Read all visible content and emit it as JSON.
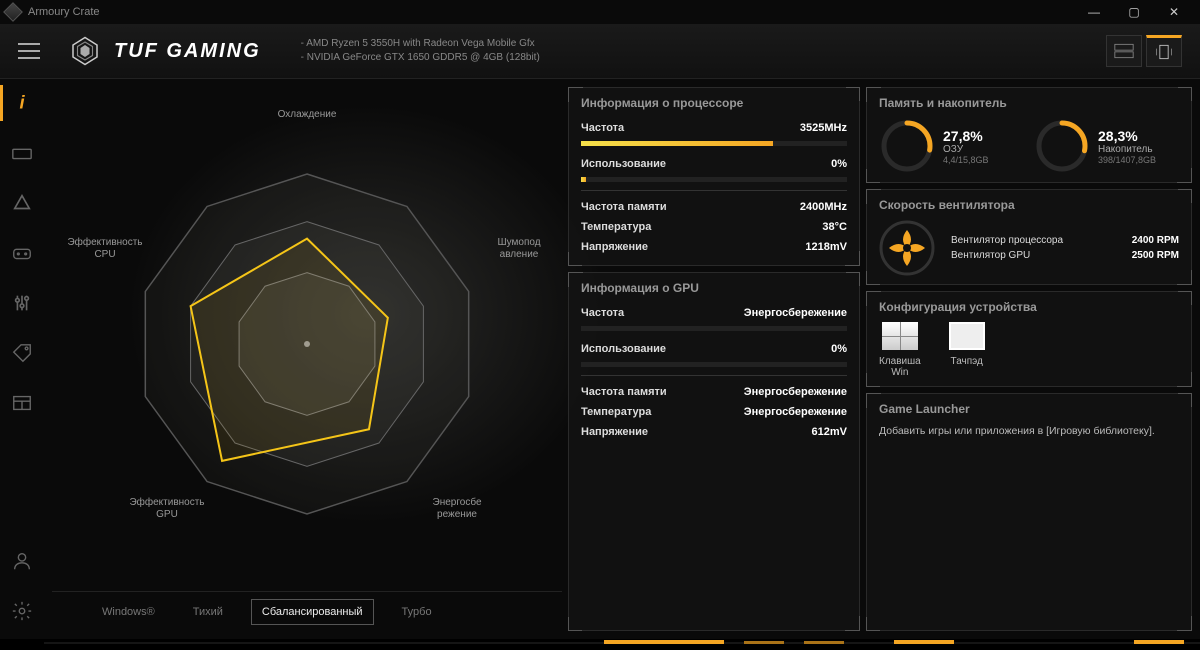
{
  "app": {
    "title": "Armoury Crate"
  },
  "brand": {
    "text": "TUF GAMING"
  },
  "specs": {
    "cpu_line": "AMD Ryzen 5 3550H with Radeon Vega Mobile Gfx",
    "gpu_line": "NVIDIA GeForce GTX 1650 GDDR5 @ 4GB (128bit)"
  },
  "radar": {
    "labels": {
      "top": "Охлаждение",
      "right": "Шумопод\nавление",
      "br": "Энергосбе\nрежение",
      "bl": "Эффективность\nGPU",
      "left": "Эффективность\nCPU"
    },
    "outer_color": "#3a3a38",
    "grid_color": "#4a4a46",
    "shape_color": "#f5c518",
    "points": [
      [
        0.55,
        0.44
      ],
      [
        0.85,
        0.68
      ],
      [
        0.6,
        0.9
      ],
      [
        0.24,
        0.86
      ],
      [
        0.23,
        0.46
      ]
    ]
  },
  "modes": {
    "items": [
      "Windows®",
      "Тихий",
      "Сбалансированный",
      "Турбо"
    ],
    "active_index": 2
  },
  "cpu": {
    "title": "Информация о процессоре",
    "freq_label": "Частота",
    "freq_value": "3525MHz",
    "freq_pct": 72,
    "use_label": "Использование",
    "use_value": "0%",
    "use_pct": 2,
    "mem_label": "Частота памяти",
    "mem_value": "2400MHz",
    "temp_label": "Температура",
    "temp_value": "38°C",
    "volt_label": "Напряжение",
    "volt_value": "1218mV"
  },
  "gpu": {
    "title": "Информация о GPU",
    "freq_label": "Частота",
    "freq_value": "Энергосбережение",
    "freq_pct": 0,
    "use_label": "Использование",
    "use_value": "0%",
    "use_pct": 0,
    "mem_label": "Частота памяти",
    "mem_value": "Энергосбережение",
    "temp_label": "Температура",
    "temp_value": "Энергосбережение",
    "volt_label": "Напряжение",
    "volt_value": "612mV"
  },
  "memory": {
    "title": "Память и накопитель",
    "ram": {
      "pct": "27,8%",
      "pct_num": 27.8,
      "label": "ОЗУ",
      "sub": "4,4/15,8GB",
      "color": "#f5a623"
    },
    "storage": {
      "pct": "28,3%",
      "pct_num": 28.3,
      "label": "Накопитель",
      "sub": "398/1407,8GB",
      "color": "#f5a623"
    }
  },
  "fan": {
    "title": "Скорость вентилятора",
    "rows": [
      {
        "label": "Вентилятор процессора",
        "value": "2400",
        "unit": "RPM"
      },
      {
        "label": "Вентилятор GPU",
        "value": "2500",
        "unit": "RPM"
      }
    ]
  },
  "device": {
    "title": "Конфигурация устройства",
    "win_label": "Клавиша\nWin",
    "tp_label": "Тачпэд"
  },
  "launcher": {
    "title": "Game Launcher",
    "text": "Добавить игры или приложения в [Игровую библиотеку]."
  },
  "accent_color": "#f5a623"
}
